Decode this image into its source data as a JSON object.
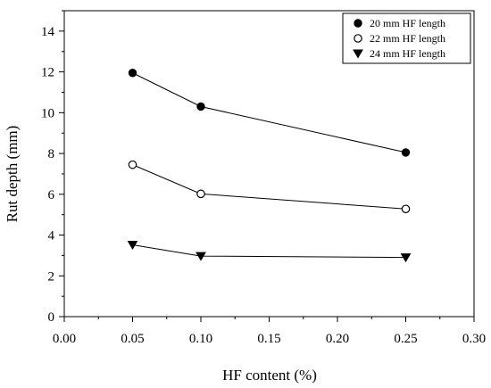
{
  "chart_data": {
    "type": "line",
    "xlabel": "HF content (%)",
    "ylabel": "Rut depth (mm)",
    "xlim": [
      0.0,
      0.3
    ],
    "ylim": [
      0,
      15
    ],
    "xticks": [
      0.0,
      0.05,
      0.1,
      0.15,
      0.2,
      0.25,
      0.3
    ],
    "xtick_labels": [
      "0.00",
      "0.05",
      "0.10",
      "0.15",
      "0.20",
      "0.25",
      "0.30"
    ],
    "yticks": [
      0,
      2,
      4,
      6,
      8,
      10,
      12,
      14
    ],
    "ytick_labels": [
      "0",
      "2",
      "4",
      "6",
      "8",
      "10",
      "12",
      "14"
    ],
    "grid": false,
    "legend_position": "top-right",
    "x": [
      0.05,
      0.1,
      0.25
    ],
    "series": [
      {
        "name": "20 mm HF length",
        "marker": "filled-circle",
        "values": [
          11.95,
          10.3,
          8.05
        ]
      },
      {
        "name": "22 mm HF length",
        "marker": "open-circle",
        "values": [
          7.45,
          6.02,
          5.28
        ]
      },
      {
        "name": "24 mm HF length",
        "marker": "filled-triangle-down",
        "values": [
          3.52,
          2.97,
          2.9
        ]
      }
    ]
  }
}
